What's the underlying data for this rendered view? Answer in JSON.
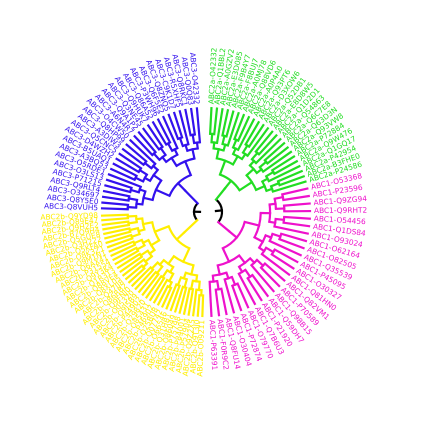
{
  "tree": {
    "clades": [
      {
        "id": "abc2a",
        "color": "#22dd22",
        "leaves": [
          "ABC2a-O42332",
          "ABC2a-Q1BBL2",
          "ABC2a-A0GZV2",
          "ABC2a-E3D085",
          "ABC2a-F9B4Y7",
          "ABC2a-F8BUJ7",
          "ABC2a-A0MJ78",
          "ABC2a-Q88VD6",
          "ABC2a-A0P4A0",
          "ABC2a-Q93PT6",
          "ABC2a-D3XOW6",
          "ABC2a-Q52DB1",
          "ABC2a-E8D8W5",
          "ABC2a-Q1D2D1",
          "ABC2a-Q54863",
          "ABC2a-Q6C7E8",
          "ABC2a-Q63D3N",
          "ABC2a-Q93VW8",
          "ABC2a-P72884",
          "ABC2a-Q9W476",
          "ABC2a-Q1GQ17",
          "ABC2a-P42954",
          "ABC2a-B3FHE0",
          "ABC2a-P24586"
        ]
      },
      {
        "id": "abc1",
        "color": "#ee11cc",
        "leaves": [
          "ABC1-O53368",
          "ABC1-P23596",
          "ABC1-Q9ZG94",
          "ABC1-Q9RHT2",
          "ABC1-O54456",
          "ABC1-Q1DS84",
          "ABC1-O93024",
          "ABC1-O62164",
          "ABC1-O82505",
          "ABC1-Q35539",
          "ABC1-P45095",
          "ABC1-O30327",
          "ABC1-Q81HN0",
          "ABC1-Q82VM1",
          "ABC1-P70589",
          "ABC1-Q98B15",
          "ABC1-Q59DH7",
          "ABC1-P21920",
          "ABC1-Q7B6U3",
          "ABC1-O79770",
          "ABC1-P72874",
          "ABC1-O30404",
          "ABC1-Q8FU14",
          "ABC1-F0R9C2",
          "ABC1-P63391"
        ]
      },
      {
        "id": "abc2b",
        "color": "#ffee00",
        "leaves": [
          "ABC2b-O09211",
          "ABC2b-Q9T3J0",
          "ABC2b-Q9Z2X5",
          "ABC2b-P57904",
          "ABC2b-P84001",
          "ABC2b-P75798",
          "ABC2b-O86049",
          "ABC2b-Q31HB1",
          "ABC2b-O66546",
          "ABC2b-Q07742",
          "ABC2b-Q25BU8",
          "ABC2b-P46902",
          "ABC2b-O85431",
          "ABC2b-O29820",
          "ABC2b-P44902",
          "ABC2b-Q9J5B9",
          "ABC2b-O05320",
          "ABC2b-Q9FNJ0",
          "ABC2b-Q86RB2",
          "ABC2b-Q47IJ8",
          "ABC2b-Q8XL05",
          "ABC2b-Q88VE4",
          "ABC2b-Q1R3T3",
          "ABC2b-Q9Y3K4",
          "ABC2b-P31554",
          "ABC2b-Q6AX41",
          "ABC2b-Q9M1N1",
          "ABC2b-O8K3Z1",
          "ABC2b-Q5KFA0",
          "ABC2b-Q3H222",
          "ABC2b-Q5GUE8",
          "ABC2b-B7Q9H4",
          "ABC2b-Q9H2E2",
          "ABC2b-Q89E47",
          "ABC2b-Q9YD98"
        ]
      },
      {
        "id": "abc3",
        "color": "#3311ee",
        "leaves": [
          "ABC3-Q8VUH5",
          "ABC3-Q8Y5E0",
          "ABC3-O34697",
          "ABC3-Q9RLT4",
          "ABC3-P71215",
          "ABC3-O3LS13",
          "ABC3-O5RDE1",
          "ABC3-A3BQ53",
          "ABC3-B5UAQ1",
          "ABC3-D4WZH2",
          "ABC3-Q5CNC5",
          "ABC3-A3DIW3",
          "ABC3-Q8HP99",
          "ABC3-O4CW50",
          "ABC3-A6N4R7",
          "ABC3-Q9A1P2",
          "ABC3-Q3NE45",
          "ABC3-Q9HUK7",
          "ABC3-Q86AS2",
          "ABC3-P3WH96",
          "ABC3-Q6F5E2",
          "ABC3-Q8ZNQ5",
          "ABC3-C9K1D7",
          "ABC3-R5XHF5",
          "ABC3-Q8RKC1",
          "ABC3-Q0Q83",
          "ABC3-O42332"
        ]
      }
    ]
  }
}
